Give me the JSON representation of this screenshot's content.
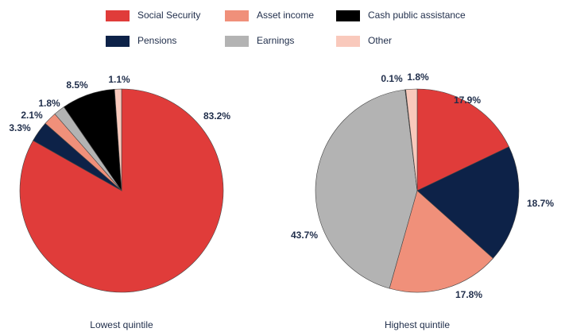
{
  "chart_data": [
    {
      "type": "pie",
      "title": "Lowest quintile",
      "categories": [
        "Social Security",
        "Pensions",
        "Asset income",
        "Earnings",
        "Cash public assistance",
        "Other"
      ],
      "colors": [
        "#e03c3a",
        "#0d2248",
        "#f0907a",
        "#b3b3b3",
        "#000000",
        "#f9c9bc"
      ],
      "values": [
        83.2,
        3.3,
        2.1,
        1.8,
        8.5,
        1.1
      ],
      "value_labels": [
        "83.2%",
        "3.3%",
        "2.1%",
        "1.8%",
        "8.5%",
        "1.1%"
      ]
    },
    {
      "type": "pie",
      "title": "Highest quintile",
      "categories": [
        "Social Security",
        "Pensions",
        "Asset income",
        "Earnings",
        "Cash public assistance",
        "Other"
      ],
      "colors": [
        "#e03c3a",
        "#0d2248",
        "#f0907a",
        "#b3b3b3",
        "#000000",
        "#f9c9bc"
      ],
      "values": [
        17.9,
        18.7,
        17.8,
        43.7,
        0.1,
        1.8
      ],
      "value_labels": [
        "17.9%",
        "18.7%",
        "17.8%",
        "43.7%",
        "0.1%",
        "1.8%"
      ]
    }
  ]
}
